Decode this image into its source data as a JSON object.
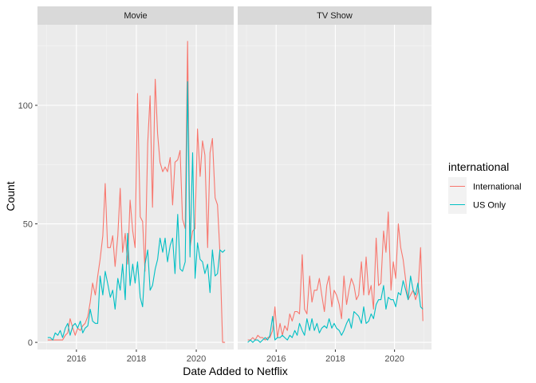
{
  "chart_data": {
    "type": "line",
    "xlabel": "Date Added to Netflix",
    "ylabel": "Count",
    "xlim": [
      2014.7,
      2021.25
    ],
    "ylim": [
      -3,
      134
    ],
    "x_ticks": [
      2016,
      2018,
      2020
    ],
    "x_tick_labels": [
      "2016",
      "2018",
      "2020"
    ],
    "y_ticks": [
      0,
      50,
      100
    ],
    "y_tick_labels": [
      "0",
      "50",
      "100"
    ],
    "grid": true,
    "legend": {
      "title": "international",
      "position": "right"
    },
    "colors": {
      "International": "#F8766D",
      "US Only": "#00BFC4"
    },
    "facets": [
      {
        "label": "Movie",
        "series": [
          {
            "name": "International",
            "x": [
              2015.04,
              2015.13,
              2015.21,
              2015.29,
              2015.38,
              2015.46,
              2015.54,
              2015.63,
              2015.71,
              2015.79,
              2015.88,
              2015.96,
              2016.04,
              2016.13,
              2016.21,
              2016.29,
              2016.38,
              2016.46,
              2016.54,
              2016.63,
              2016.71,
              2016.79,
              2016.88,
              2016.96,
              2017.04,
              2017.13,
              2017.21,
              2017.29,
              2017.38,
              2017.46,
              2017.54,
              2017.63,
              2017.71,
              2017.79,
              2017.88,
              2017.96,
              2018.04,
              2018.13,
              2018.21,
              2018.29,
              2018.38,
              2018.46,
              2018.54,
              2018.63,
              2018.71,
              2018.79,
              2018.88,
              2018.96,
              2019.04,
              2019.13,
              2019.21,
              2019.29,
              2019.38,
              2019.46,
              2019.54,
              2019.63,
              2019.71,
              2019.79,
              2019.88,
              2019.96,
              2020.04,
              2020.13,
              2020.21,
              2020.29,
              2020.38,
              2020.46,
              2020.54,
              2020.63,
              2020.71,
              2020.79,
              2020.88,
              2020.96
            ],
            "y": [
              1,
              1,
              1,
              1,
              1,
              1,
              1,
              3,
              4,
              10,
              6,
              3,
              6,
              5,
              7,
              8,
              11,
              17,
              25,
              20,
              28,
              35,
              45,
              67,
              40,
              40,
              45,
              32,
              45,
              65,
              38,
              46,
              33,
              60,
              47,
              40,
              105,
              53,
              51,
              30,
              84,
              104,
              57,
              111,
              88,
              76,
              72,
              74,
              72,
              78,
              58,
              76,
              77,
              81,
              52,
              48,
              127,
              40,
              47,
              48,
              90,
              70,
              85,
              79,
              40,
              80,
              86,
              61,
              58,
              38,
              0,
              0
            ]
          },
          {
            "name": "US Only",
            "x": [
              2015.04,
              2015.13,
              2015.21,
              2015.29,
              2015.38,
              2015.46,
              2015.54,
              2015.63,
              2015.71,
              2015.79,
              2015.88,
              2015.96,
              2016.04,
              2016.13,
              2016.21,
              2016.29,
              2016.38,
              2016.46,
              2016.54,
              2016.63,
              2016.71,
              2016.79,
              2016.88,
              2016.96,
              2017.04,
              2017.13,
              2017.21,
              2017.29,
              2017.38,
              2017.46,
              2017.54,
              2017.63,
              2017.71,
              2017.79,
              2017.88,
              2017.96,
              2018.04,
              2018.13,
              2018.21,
              2018.29,
              2018.38,
              2018.46,
              2018.54,
              2018.63,
              2018.71,
              2018.79,
              2018.88,
              2018.96,
              2019.04,
              2019.13,
              2019.21,
              2019.29,
              2019.38,
              2019.46,
              2019.54,
              2019.63,
              2019.71,
              2019.79,
              2019.88,
              2019.96,
              2020.04,
              2020.13,
              2020.21,
              2020.29,
              2020.38,
              2020.46,
              2020.54,
              2020.63,
              2020.71,
              2020.79,
              2020.88,
              2020.96
            ],
            "y": [
              2,
              2,
              1,
              4,
              3,
              5,
              2,
              6,
              8,
              3,
              7,
              8,
              6,
              9,
              4,
              6,
              7,
              14,
              9,
              8,
              8,
              28,
              20,
              30,
              25,
              19,
              22,
              14,
              27,
              22,
              33,
              18,
              46,
              24,
              33,
              25,
              34,
              19,
              15,
              33,
              39,
              22,
              24,
              31,
              35,
              44,
              38,
              44,
              34,
              41,
              44,
              29,
              54,
              31,
              30,
              34,
              110,
              36,
              80,
              27,
              42,
              35,
              34,
              29,
              33,
              21,
              39,
              28,
              29,
              39,
              38,
              39
            ],
            "note": ""
          }
        ]
      },
      {
        "label": "TV Show",
        "series": [
          {
            "name": "International",
            "x": [
              2015.04,
              2015.13,
              2015.21,
              2015.29,
              2015.38,
              2015.46,
              2015.54,
              2015.63,
              2015.71,
              2015.79,
              2015.88,
              2015.96,
              2016.04,
              2016.13,
              2016.21,
              2016.29,
              2016.38,
              2016.46,
              2016.54,
              2016.63,
              2016.71,
              2016.79,
              2016.88,
              2016.96,
              2017.04,
              2017.13,
              2017.21,
              2017.29,
              2017.38,
              2017.46,
              2017.54,
              2017.63,
              2017.71,
              2017.79,
              2017.88,
              2017.96,
              2018.04,
              2018.13,
              2018.21,
              2018.29,
              2018.38,
              2018.46,
              2018.54,
              2018.63,
              2018.71,
              2018.79,
              2018.88,
              2018.96,
              2019.04,
              2019.13,
              2019.21,
              2019.29,
              2019.38,
              2019.46,
              2019.54,
              2019.63,
              2019.71,
              2019.79,
              2019.88,
              2019.96,
              2020.04,
              2020.13,
              2020.21,
              2020.29,
              2020.38,
              2020.46,
              2020.54,
              2020.63,
              2020.71,
              2020.79,
              2020.88,
              2020.96
            ],
            "y": [
              1,
              1,
              2,
              1,
              3,
              2,
              2,
              1,
              2,
              2,
              5,
              15,
              2,
              8,
              3,
              7,
              5,
              12,
              9,
              13,
              13,
              12,
              37,
              14,
              12,
              28,
              17,
              22,
              22,
              27,
              20,
              13,
              24,
              28,
              15,
              22,
              20,
              16,
              10,
              28,
              16,
              22,
              27,
              24,
              18,
              20,
              34,
              20,
              36,
              20,
              24,
              14,
              44,
              24,
              25,
              47,
              38,
              55,
              22,
              34,
              27,
              50,
              40,
              35,
              26,
              18,
              20,
              22,
              18,
              21,
              40,
              9
            ]
          },
          {
            "name": "US Only",
            "x": [
              2015.04,
              2015.13,
              2015.21,
              2015.29,
              2015.38,
              2015.46,
              2015.54,
              2015.63,
              2015.71,
              2015.79,
              2015.88,
              2015.96,
              2016.04,
              2016.13,
              2016.21,
              2016.29,
              2016.38,
              2016.46,
              2016.54,
              2016.63,
              2016.71,
              2016.79,
              2016.88,
              2016.96,
              2017.04,
              2017.13,
              2017.21,
              2017.29,
              2017.38,
              2017.46,
              2017.54,
              2017.63,
              2017.71,
              2017.79,
              2017.88,
              2017.96,
              2018.04,
              2018.13,
              2018.21,
              2018.29,
              2018.38,
              2018.46,
              2018.54,
              2018.63,
              2018.71,
              2018.79,
              2018.88,
              2018.96,
              2019.04,
              2019.13,
              2019.21,
              2019.29,
              2019.38,
              2019.46,
              2019.54,
              2019.63,
              2019.71,
              2019.79,
              2019.88,
              2019.96,
              2020.04,
              2020.13,
              2020.21,
              2020.29,
              2020.38,
              2020.46,
              2020.54,
              2020.63,
              2020.71,
              2020.79,
              2020.88,
              2020.96
            ],
            "y": [
              0,
              1,
              0,
              1,
              1,
              0,
              1,
              2,
              1,
              3,
              11,
              1,
              2,
              2,
              3,
              2,
              1,
              3,
              2,
              5,
              3,
              8,
              5,
              3,
              10,
              5,
              10,
              5,
              8,
              4,
              6,
              7,
              6,
              10,
              6,
              8,
              6,
              5,
              3,
              5,
              8,
              10,
              6,
              13,
              12,
              11,
              8,
              15,
              8,
              9,
              12,
              10,
              16,
              18,
              18,
              24,
              14,
              19,
              18,
              18,
              15,
              21,
              20,
              26,
              22,
              18,
              28,
              22,
              20,
              25,
              15,
              14
            ]
          }
        ]
      }
    ]
  }
}
